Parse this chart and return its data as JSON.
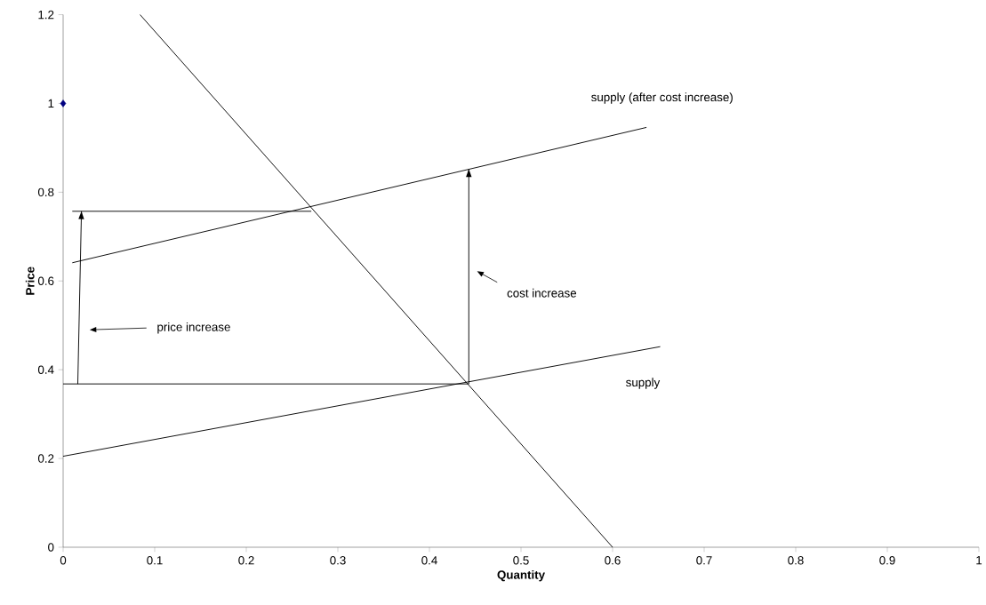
{
  "chart_data": {
    "type": "line",
    "xlabel": "Quantity",
    "ylabel": "Price",
    "xlim": [
      0,
      1
    ],
    "ylim": [
      0,
      1.2
    ],
    "xticks": [
      0,
      0.1,
      0.2,
      0.3,
      0.4,
      0.5,
      0.6,
      0.7,
      0.8,
      0.9,
      1
    ],
    "yticks": [
      0,
      0.2,
      0.4,
      0.6,
      0.8,
      1,
      1.2
    ],
    "grid": false,
    "legend": false,
    "marker": "none",
    "line_style": "solid",
    "series": [
      {
        "color": "#000000",
        "x": [
          0.084,
          0.6
        ],
        "values": [
          1.2,
          0
        ]
      },
      {
        "name": "supply",
        "color": "#000000",
        "x": [
          0,
          0.652
        ],
        "values": [
          0.205,
          0.452
        ]
      },
      {
        "name": "supply (after cost increase)",
        "color": "#000000",
        "x": [
          0.01,
          0.637
        ],
        "values": [
          0.641,
          0.946
        ]
      },
      {
        "color": "#000000",
        "x": [
          0,
          0.443
        ],
        "values": [
          0.368,
          0.368
        ]
      },
      {
        "color": "#000000",
        "x": [
          0.01,
          0.271
        ],
        "values": [
          0.757,
          0.757
        ]
      },
      {
        "color": "#000000",
        "x": [
          0.016,
          0.02
        ],
        "values": [
          0.368,
          0.757
        ]
      },
      {
        "color": "#000000",
        "x": [
          0.443,
          0.443
        ],
        "values": [
          0.368,
          0.852
        ]
      },
      {
        "type": "scatter",
        "color": "#000080",
        "marker": "diamond",
        "x": [
          0
        ],
        "values": [
          1
        ]
      }
    ],
    "annotations": [
      "price increase",
      "cost increase"
    ]
  }
}
